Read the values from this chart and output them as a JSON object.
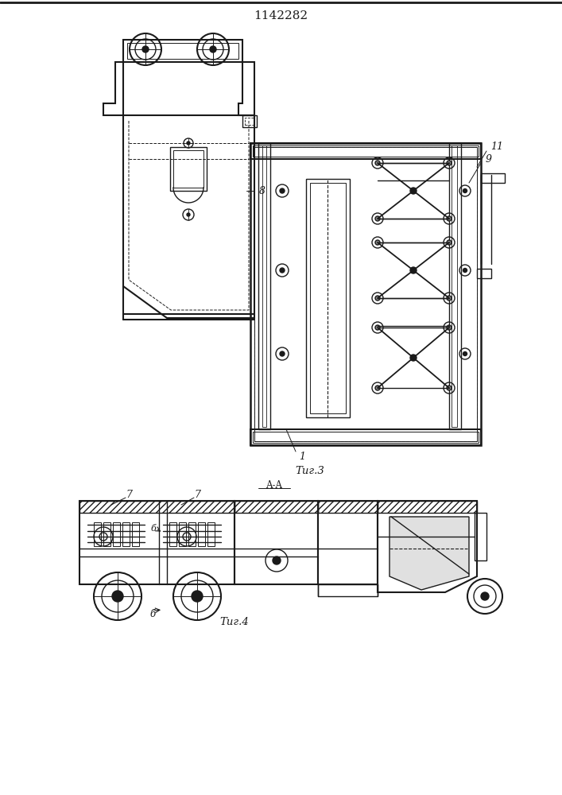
{
  "title": "1142282",
  "bg_color": "#ffffff",
  "line_color": "#1a1a1a",
  "line_width": 1.0,
  "fig3_label": "Τиг.3",
  "fig4_label": "Τиг.4",
  "section_label": "A-A"
}
